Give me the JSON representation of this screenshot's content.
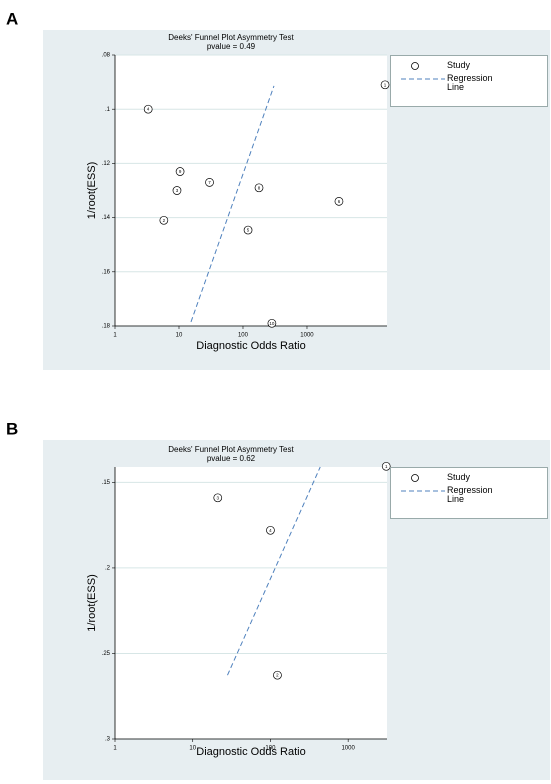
{
  "chart_data": [
    {
      "type": "scatter",
      "panel_label": "A",
      "title": "Deeks' Funnel Plot Asymmetry Test",
      "subtitle": "pvalue =  0.49",
      "x_label": "Diagnostic Odds Ratio",
      "y_label": "1/root(ESS)",
      "log_x": true,
      "y_reversed": true,
      "grid": true,
      "xlim": [
        1,
        17800
      ],
      "xticks": [
        1,
        10,
        100,
        1000
      ],
      "ylim": [
        0.08,
        0.18
      ],
      "yticks": [
        {
          "value": 0.08,
          "label": ".08"
        },
        {
          "value": 0.1,
          "label": ".1"
        },
        {
          "value": 0.12,
          "label": ".12"
        },
        {
          "value": 0.14,
          "label": ".14"
        },
        {
          "value": 0.16,
          "label": ".16"
        },
        {
          "value": 0.18,
          "label": ".18"
        }
      ],
      "series": [
        {
          "name": "Study",
          "color": "#000000",
          "point_labels": [
            "1",
            "2",
            "3",
            "4",
            "5",
            "6",
            "7",
            "8",
            "9",
            "10"
          ],
          "x": [
            16600,
            5.8,
            9.3,
            3.3,
            120,
            3160,
            30,
            178,
            10.4,
            283
          ],
          "values": [
            0.091,
            0.141,
            0.13,
            0.1,
            0.1446,
            0.134,
            0.127,
            0.129,
            0.123,
            0.179
          ]
        },
        {
          "name": "Regression Line",
          "color": "#4f81bd",
          "x": [
            15.4,
            305
          ],
          "values": [
            0.1785,
            0.0914
          ]
        }
      ]
    },
    {
      "type": "scatter",
      "panel_label": "B",
      "title": "Deeks' Funnel Plot Asymmetry Test",
      "subtitle": "pvalue =  0.62",
      "x_label": "Diagnostic Odds Ratio",
      "y_label": "1/root(ESS)",
      "log_x": true,
      "y_reversed": true,
      "grid": true,
      "xlim": [
        1,
        3160
      ],
      "xticks": [
        1,
        10,
        100,
        1000
      ],
      "ylim": [
        0.141,
        0.3
      ],
      "yticks": [
        {
          "value": 0.15,
          "label": ".15"
        },
        {
          "value": 0.2,
          "label": ".2"
        },
        {
          "value": 0.25,
          "label": ".25"
        },
        {
          "value": 0.3,
          "label": ".3"
        }
      ],
      "series": [
        {
          "name": "Study",
          "color": "#000000",
          "point_labels": [
            "1",
            "2",
            "3",
            "4"
          ],
          "x": [
            3090,
            123,
            21,
            100
          ],
          "values": [
            0.1406,
            0.2627,
            0.159,
            0.178
          ]
        },
        {
          "name": "Regression Line",
          "color": "#4f81bd",
          "x": [
            28,
            437
          ],
          "values": [
            0.2627,
            0.141
          ]
        }
      ]
    }
  ]
}
